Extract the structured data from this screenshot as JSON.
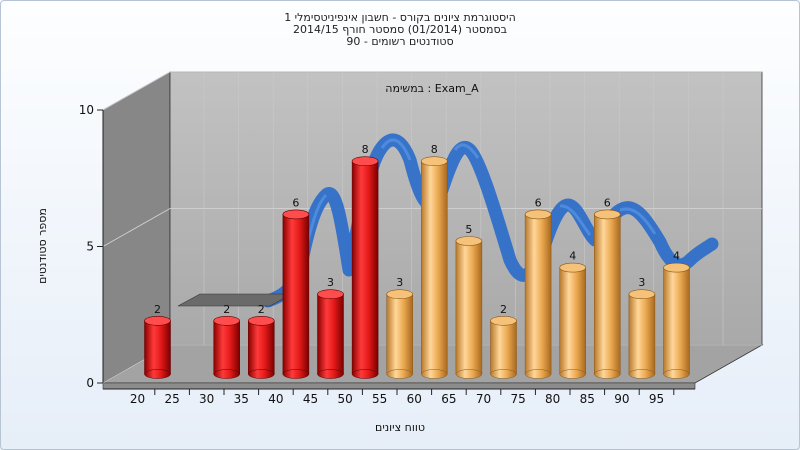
{
  "chart_data": {
    "type": "bar",
    "title_lines": [
      "היסטוגרמת ציונים בקורס - חשבון אינפיניטסימלי 1",
      "בסמסטר (01/2014) סמסטר חורף 2014/15",
      "סטודנטים רשומים - 90"
    ],
    "subtitle": "במשימה : Exam_A",
    "xlabel": "טווח ציונים",
    "ylabel": "מספר סטודנטים",
    "ylim": [
      0,
      10
    ],
    "y_ticks": [
      "0",
      "5",
      "10"
    ],
    "categories": [
      "20",
      "25",
      "30",
      "35",
      "40",
      "45",
      "50",
      "55",
      "60",
      "65",
      "70",
      "75",
      "80",
      "85",
      "90",
      "95"
    ],
    "bars": [
      {
        "x": 20,
        "value": 2,
        "color": "red"
      },
      {
        "x": 30,
        "value": 2,
        "color": "red"
      },
      {
        "x": 35,
        "value": 2,
        "color": "red"
      },
      {
        "x": 40,
        "value": 6,
        "color": "red"
      },
      {
        "x": 45,
        "value": 3,
        "color": "red"
      },
      {
        "x": 50,
        "value": 8,
        "color": "red"
      },
      {
        "x": 55,
        "value": 3,
        "color": "orange"
      },
      {
        "x": 60,
        "value": 8,
        "color": "orange"
      },
      {
        "x": 65,
        "value": 5,
        "color": "orange"
      },
      {
        "x": 70,
        "value": 2,
        "color": "orange"
      },
      {
        "x": 75,
        "value": 6,
        "color": "orange"
      },
      {
        "x": 80,
        "value": 4,
        "color": "orange"
      },
      {
        "x": 85,
        "value": 6,
        "color": "orange"
      },
      {
        "x": 90,
        "value": 3,
        "color": "orange"
      },
      {
        "x": 95,
        "value": 4,
        "color": "orange"
      }
    ],
    "colors": {
      "red": "#e01818",
      "orange": "#eaa850",
      "ribbon": "#2f6fc8",
      "back_wall": "#b4b4b4",
      "side_wall": "#8a8a8a",
      "floor": "#a0a0a0"
    },
    "grid": true
  }
}
